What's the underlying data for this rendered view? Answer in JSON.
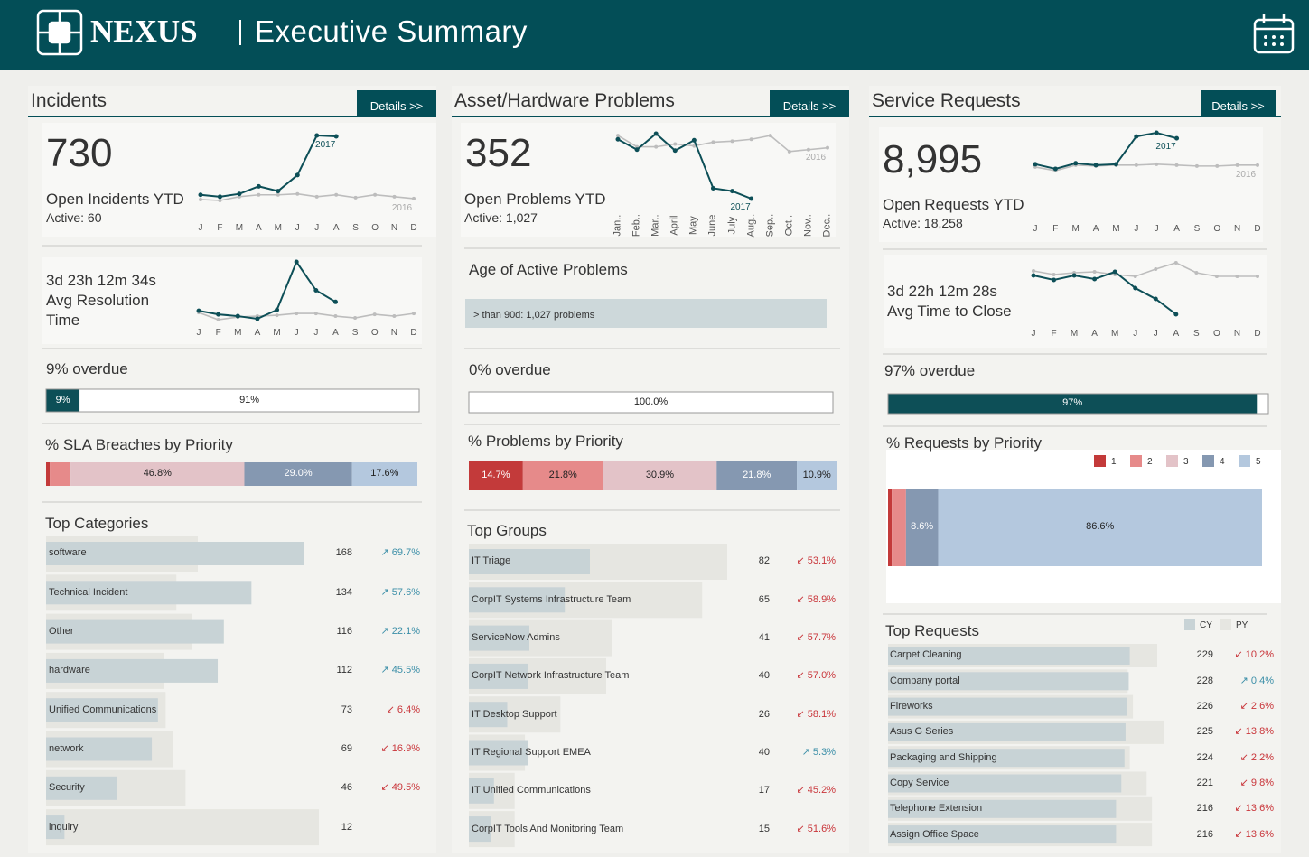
{
  "header": {
    "brand": "NEXUS",
    "title": "Executive Summary"
  },
  "months": [
    "J",
    "F",
    "M",
    "A",
    "M",
    "J",
    "J",
    "A",
    "S",
    "O",
    "N",
    "D"
  ],
  "months_long": [
    "Jan..",
    "Feb..",
    "Mar..",
    "April",
    "May",
    "June",
    "July",
    "Aug..",
    "Sep..",
    "Oct..",
    "Nov..",
    "Dec.."
  ],
  "priority_colors": [
    "#c33a3a",
    "#e68a8a",
    "#e3c3c8",
    "#8598b1",
    "#b4c8de"
  ],
  "incidents": {
    "title": "Incidents",
    "details": "Details >>",
    "kpi": {
      "value": "730",
      "label": "Open Incidents YTD",
      "sub": "Active: 60"
    },
    "trend": {
      "cy_label": "2017",
      "py_label": "2016",
      "cy": [
        12,
        10,
        13,
        21,
        16,
        33,
        75,
        74
      ],
      "py": [
        7,
        6,
        10,
        12,
        12,
        13,
        10,
        12,
        9,
        12,
        10,
        8
      ]
    },
    "resolution": {
      "value": "3d 23h 12m 34s",
      "label": "Avg Resolution Time",
      "trend": {
        "cy": [
          16,
          12,
          10,
          7,
          17,
          71,
          39,
          26
        ],
        "py": [
          14,
          6,
          9,
          10,
          11,
          13,
          13,
          10,
          8,
          12,
          10,
          13
        ]
      }
    },
    "overdue": {
      "title": "9%  overdue",
      "segments": [
        {
          "value": 9,
          "label": "9%",
          "color": "#0d4f57"
        },
        {
          "value": 91,
          "label": "91%",
          "color": "#ffffff"
        }
      ]
    },
    "priority": {
      "title": "% SLA Breaches by Priority",
      "segments": [
        {
          "priority": 1,
          "value": 1.0
        },
        {
          "priority": 2,
          "value": 5.6
        },
        {
          "priority": 3,
          "value": 46.8,
          "label": "46.8%"
        },
        {
          "priority": 4,
          "value": 29.0,
          "label": "29.0%"
        },
        {
          "priority": 5,
          "value": 17.6,
          "label": "17.6%"
        }
      ]
    },
    "top": {
      "title": "Top Categories",
      "rows": [
        {
          "name": "software",
          "value": 168,
          "py": 99,
          "change": "↗ 69.7%"
        },
        {
          "name": "Technical Incident",
          "value": 134,
          "py": 85,
          "change": "↗ 57.6%"
        },
        {
          "name": "Other",
          "value": 116,
          "py": 95,
          "change": "↗ 22.1%"
        },
        {
          "name": "hardware",
          "value": 112,
          "py": 77,
          "change": "↗ 45.5%"
        },
        {
          "name": "Unified Communications",
          "value": 73,
          "py": 78,
          "change": "↙ 6.4%"
        },
        {
          "name": "network",
          "value": 69,
          "py": 83,
          "change": "↙ 16.9%"
        },
        {
          "name": "Security",
          "value": 46,
          "py": 91,
          "change": "↙ 49.5%"
        },
        {
          "name": "inquiry",
          "value": 12,
          "py": 178
        }
      ]
    }
  },
  "problems": {
    "title": "Asset/Hardware Problems",
    "details": "Details >>",
    "kpi": {
      "value": "352",
      "label": "Open Problems YTD",
      "sub": "Active: 1,027"
    },
    "trend": {
      "cy_label": "2017",
      "py_label": "2016",
      "cy": [
        75,
        64,
        81,
        63,
        74,
        23,
        20,
        12
      ],
      "py": [
        79,
        67,
        67,
        70,
        68,
        72,
        73,
        75,
        79,
        62,
        64,
        66
      ]
    },
    "age": {
      "title": "Age of Active Problems",
      "bar_label": "> than 90d: 1,027 problems"
    },
    "overdue": {
      "title": "0% overdue",
      "segments": [
        {
          "value": 0,
          "color": "#0d4f57"
        },
        {
          "value": 100,
          "label": "100.0%",
          "color": "#ffffff"
        }
      ]
    },
    "priority": {
      "title": "% Problems by Priority",
      "segments": [
        {
          "priority": 1,
          "value": 14.7,
          "label": "14.7%"
        },
        {
          "priority": 2,
          "value": 21.8,
          "label": "21.8%"
        },
        {
          "priority": 3,
          "value": 30.9,
          "label": "30.9%"
        },
        {
          "priority": 4,
          "value": 21.8,
          "label": "21.8%"
        },
        {
          "priority": 5,
          "value": 10.9,
          "label": "10.9%"
        }
      ]
    },
    "top": {
      "title": "Top Groups",
      "rows": [
        {
          "name": "IT Triage",
          "value": 82,
          "py": 175,
          "change": "↙ 53.1%"
        },
        {
          "name": "CorpIT Systems Infrastructure Team",
          "value": 65,
          "py": 158,
          "change": "↙ 58.9%"
        },
        {
          "name": "ServiceNow Admins",
          "value": 41,
          "py": 97,
          "change": "↙ 57.7%"
        },
        {
          "name": "CorpIT Network Infrastructure Team",
          "value": 40,
          "py": 93,
          "change": "↙ 57.0%"
        },
        {
          "name": "IT Desktop Support",
          "value": 26,
          "py": 62,
          "change": "↙ 58.1%"
        },
        {
          "name": "IT Regional Support EMEA",
          "value": 40,
          "py": 38,
          "change": "↗ 5.3%"
        },
        {
          "name": "IT Unified Communications",
          "value": 17,
          "py": 31,
          "change": "↙ 45.2%"
        },
        {
          "name": "CorpIT Tools And Monitoring Team",
          "value": 15,
          "py": 31,
          "change": "↙ 51.6%"
        }
      ]
    }
  },
  "requests": {
    "title": "Service Requests",
    "details": "Details >>",
    "kpi": {
      "value": "8,995",
      "label": "Open Requests YTD",
      "sub": "Active: 18,258"
    },
    "trend": {
      "cy_label": "2017",
      "py_label": "2016",
      "cy": [
        18,
        13,
        19,
        17,
        18,
        48,
        52,
        46
      ],
      "py": [
        15,
        11,
        17,
        16,
        17,
        17,
        18,
        17,
        16,
        16,
        17,
        17
      ]
    },
    "close": {
      "value": "3d 22h 12m 28s",
      "label": "Avg Time to Close",
      "trend": {
        "cy": [
          55,
          50,
          55,
          51,
          59,
          41,
          29,
          12
        ],
        "py": [
          60,
          56,
          58,
          59,
          56,
          54,
          62,
          69,
          58,
          54,
          54,
          54
        ]
      }
    },
    "overdue": {
      "title": "97% overdue",
      "segments": [
        {
          "value": 97,
          "label": "97%",
          "color": "#0d4f57"
        },
        {
          "value": 3,
          "color": "#ffffff"
        }
      ]
    },
    "priority": {
      "title": "% Requests by Priority",
      "legend": [
        "1",
        "2",
        "3",
        "4",
        "5"
      ],
      "segments": [
        {
          "priority": 1,
          "value": 1.0
        },
        {
          "priority": 2,
          "value": 3.8
        },
        {
          "priority": 4,
          "value": 8.6,
          "label": "8.6%"
        },
        {
          "priority": 5,
          "value": 86.6,
          "label": "86.6%"
        }
      ]
    },
    "top": {
      "title": "Top Requests",
      "legend": [
        "CY",
        "PY"
      ],
      "rows": [
        {
          "name": "Carpet Cleaning",
          "value": 229,
          "py": 255,
          "change": "↙ 10.2%"
        },
        {
          "name": "Company portal",
          "value": 228,
          "py": 227,
          "change": "↗ 0.4%"
        },
        {
          "name": "Fireworks",
          "value": 226,
          "py": 232,
          "change": "↙ 2.6%"
        },
        {
          "name": "Asus G Series",
          "value": 225,
          "py": 261,
          "change": "↙ 13.8%"
        },
        {
          "name": "Packaging and Shipping",
          "value": 224,
          "py": 229,
          "change": "↙ 2.2%"
        },
        {
          "name": "Copy Service",
          "value": 221,
          "py": 245,
          "change": "↙ 9.8%"
        },
        {
          "name": "Telephone Extension",
          "value": 216,
          "py": 250,
          "change": "↙ 13.6%"
        },
        {
          "name": "Assign Office Space",
          "value": 216,
          "py": 250,
          "change": "↙ 13.6%"
        }
      ]
    }
  }
}
